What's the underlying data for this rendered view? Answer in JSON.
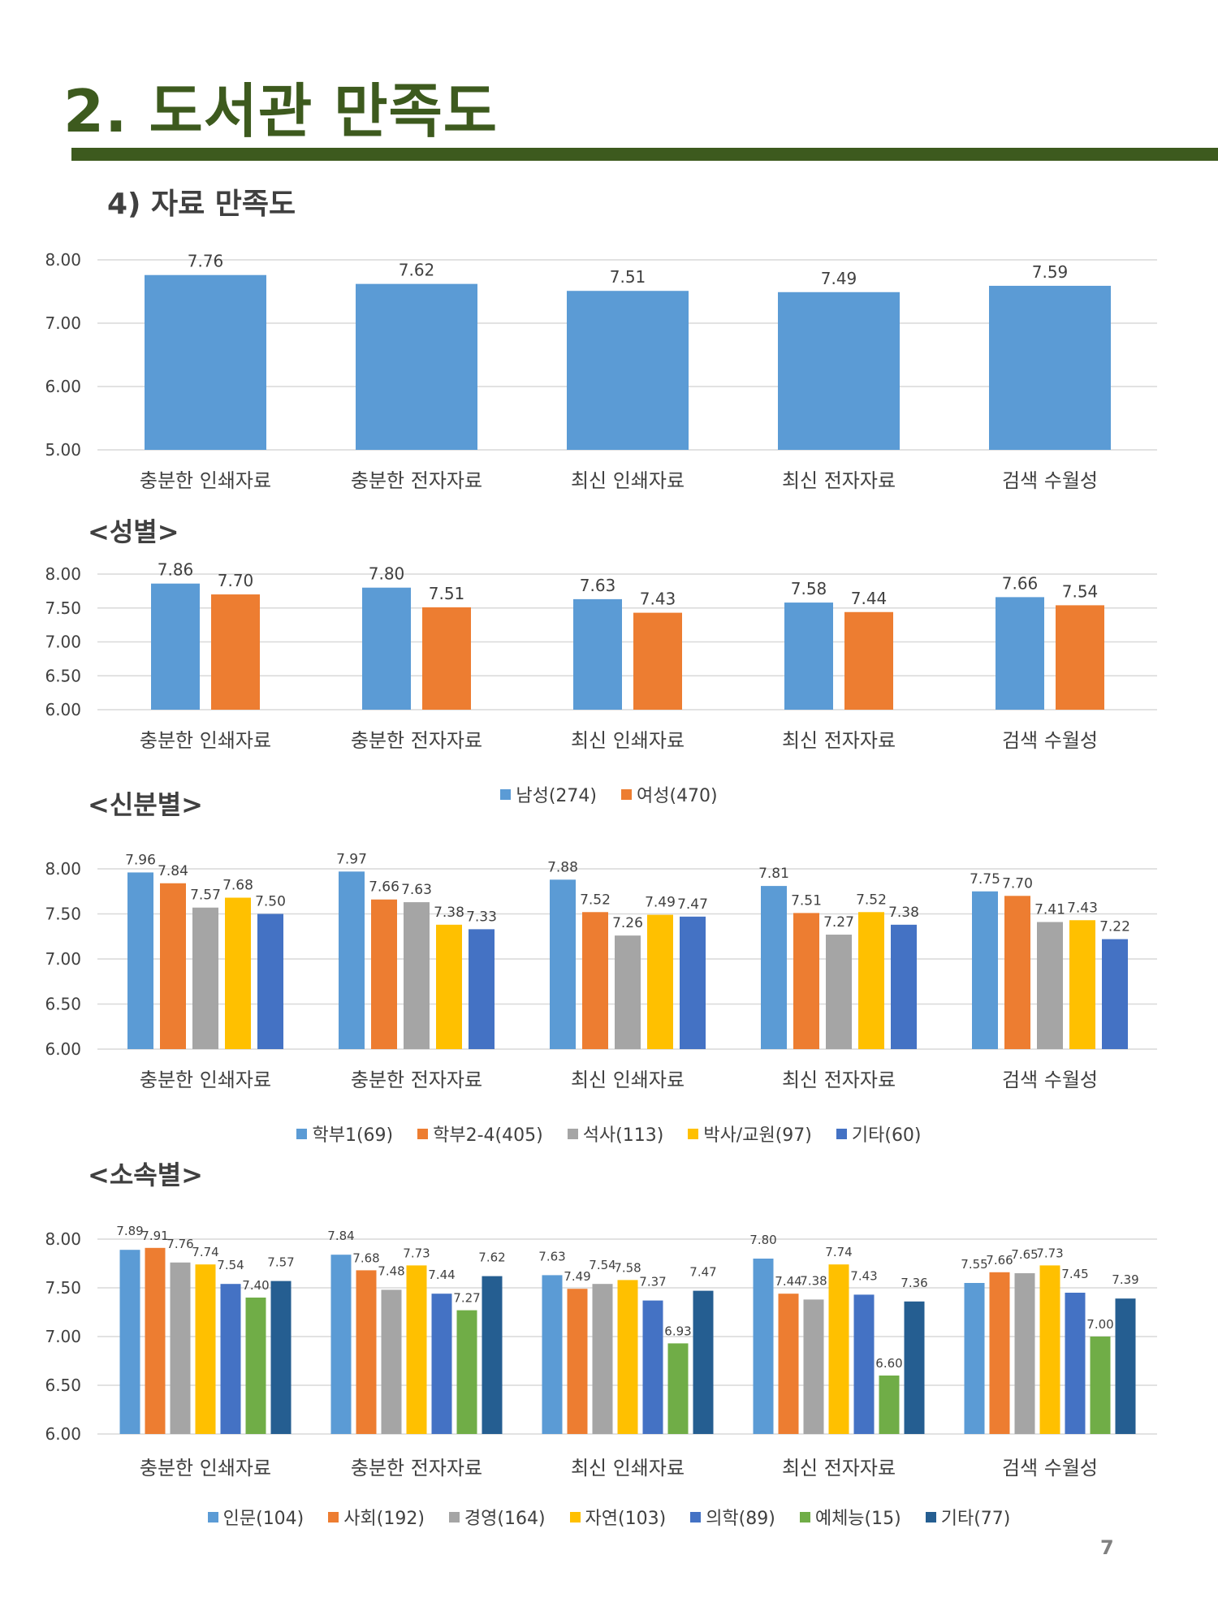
{
  "page": {
    "title": "2. 도서관 만족도",
    "subtitle": "4) 자료 만족도",
    "section_gender": "<성별>",
    "section_status": "<신분별>",
    "section_affiliation": "<소속별>",
    "page_number": "7"
  },
  "chart_data": [
    {
      "type": "bar",
      "id": "overall",
      "categories": [
        "충분한 인쇄자료",
        "충분한 전자자료",
        "최신 인쇄자료",
        "최신 전자자료",
        "검색 수월성"
      ],
      "series": [
        {
          "name": "",
          "color": "#5b9bd5",
          "values": [
            7.76,
            7.62,
            7.51,
            7.49,
            7.59
          ]
        }
      ],
      "ylim": [
        5,
        8
      ],
      "yticks": [
        "5.00",
        "6.00",
        "7.00",
        "8.00"
      ],
      "ytick_values": [
        5,
        6,
        7,
        8
      ],
      "grid": true,
      "legend": false
    },
    {
      "type": "bar",
      "id": "gender",
      "categories": [
        "충분한 인쇄자료",
        "충분한 전자자료",
        "최신 인쇄자료",
        "최신 전자자료",
        "검색 수월성"
      ],
      "series": [
        {
          "name": "남성(274)",
          "color": "#5b9bd5",
          "values": [
            7.86,
            7.8,
            7.63,
            7.58,
            7.66
          ]
        },
        {
          "name": "여성(470)",
          "color": "#ed7d31",
          "values": [
            7.7,
            7.51,
            7.43,
            7.44,
            7.54
          ]
        }
      ],
      "ylim": [
        6,
        8
      ],
      "yticks": [
        "6.00",
        "6.50",
        "7.00",
        "7.50",
        "8.00"
      ],
      "ytick_values": [
        6,
        6.5,
        7,
        7.5,
        8
      ],
      "grid": true,
      "legend": "bottom"
    },
    {
      "type": "bar",
      "id": "status",
      "categories": [
        "충분한 인쇄자료",
        "충분한 전자자료",
        "최신 인쇄자료",
        "최신 전자자료",
        "검색 수월성"
      ],
      "series": [
        {
          "name": "학부1(69)",
          "color": "#5b9bd5",
          "values": [
            7.96,
            7.97,
            7.88,
            7.81,
            7.75
          ]
        },
        {
          "name": "학부2-4(405)",
          "color": "#ed7d31",
          "values": [
            7.84,
            7.66,
            7.52,
            7.51,
            7.7
          ]
        },
        {
          "name": "석사(113)",
          "color": "#a5a5a5",
          "values": [
            7.57,
            7.63,
            7.26,
            7.27,
            7.41
          ]
        },
        {
          "name": "박사/교원(97)",
          "color": "#ffc000",
          "values": [
            7.68,
            7.38,
            7.49,
            7.52,
            7.43
          ]
        },
        {
          "name": "기타(60)",
          "color": "#4472c4",
          "values": [
            7.5,
            7.33,
            7.47,
            7.38,
            7.22
          ]
        }
      ],
      "ylim": [
        6,
        8
      ],
      "yticks": [
        "6.00",
        "6.50",
        "7.00",
        "7.50",
        "8.00"
      ],
      "ytick_values": [
        6,
        6.5,
        7,
        7.5,
        8
      ],
      "grid": true,
      "legend": "bottom"
    },
    {
      "type": "bar",
      "id": "affiliation",
      "categories": [
        "충분한 인쇄자료",
        "충분한 전자자료",
        "최신 인쇄자료",
        "최신 전자자료",
        "검색 수월성"
      ],
      "series": [
        {
          "name": "인문(104)",
          "color": "#5b9bd5",
          "values": [
            7.89,
            7.84,
            7.63,
            7.8,
            7.55
          ]
        },
        {
          "name": "사회(192)",
          "color": "#ed7d31",
          "values": [
            7.91,
            7.68,
            7.49,
            7.44,
            7.66
          ]
        },
        {
          "name": "경영(164)",
          "color": "#a5a5a5",
          "values": [
            7.76,
            7.48,
            7.54,
            7.38,
            7.65
          ]
        },
        {
          "name": "자연(103)",
          "color": "#ffc000",
          "values": [
            7.74,
            7.73,
            7.58,
            7.74,
            7.73
          ]
        },
        {
          "name": "의학(89)",
          "color": "#4472c4",
          "values": [
            7.54,
            7.44,
            7.37,
            7.43,
            7.45
          ]
        },
        {
          "name": "예체능(15)",
          "color": "#70ad47",
          "values": [
            7.4,
            7.27,
            6.93,
            6.6,
            7.0
          ]
        },
        {
          "name": "기타(77)",
          "color": "#255e91",
          "values": [
            7.57,
            7.62,
            7.47,
            7.36,
            7.39
          ]
        }
      ],
      "ylim": [
        6,
        8
      ],
      "yticks": [
        "6.00",
        "6.50",
        "7.00",
        "7.50",
        "8.00"
      ],
      "ytick_values": [
        6,
        6.5,
        7,
        7.5,
        8
      ],
      "grid": true,
      "legend": "bottom"
    }
  ]
}
